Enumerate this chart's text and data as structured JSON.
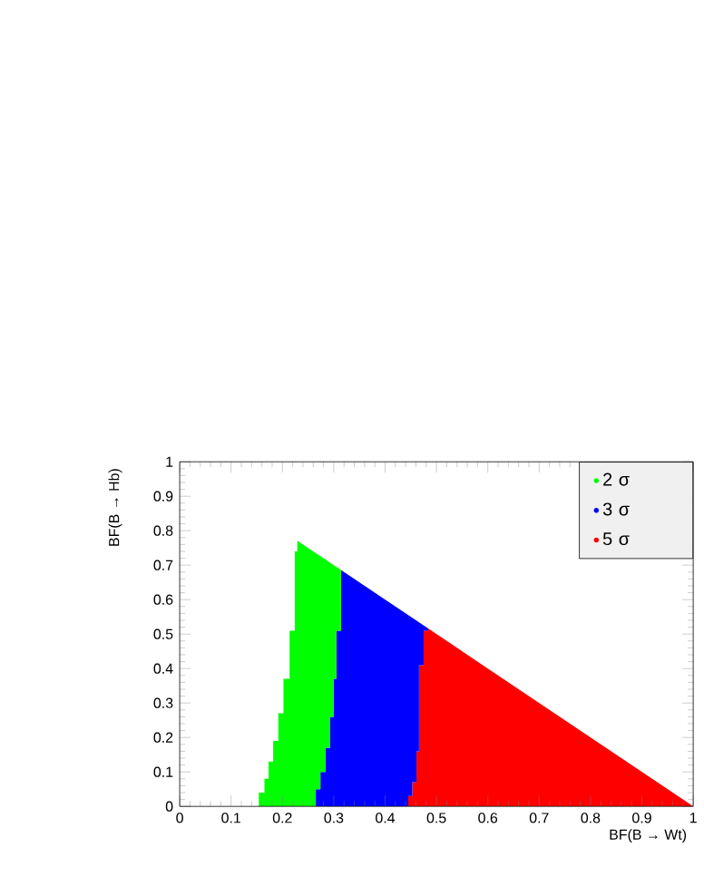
{
  "chart_data": {
    "type": "area",
    "stacked": true,
    "xlabel": "BF(B → Wt)",
    "ylabel": "BF(B → Hb)",
    "xlim": [
      0,
      1
    ],
    "ylim": [
      0,
      1
    ],
    "xticks": [
      0,
      0.1,
      0.2,
      0.3,
      0.4,
      0.5,
      0.6,
      0.7,
      0.8,
      0.9,
      1
    ],
    "yticks": [
      0,
      0.1,
      0.2,
      0.3,
      0.4,
      0.5,
      0.6,
      0.7,
      0.8,
      0.9,
      1
    ],
    "legend": "top right",
    "x": [
      0.154,
      0.154,
      0.165,
      0.165,
      0.173,
      0.173,
      0.182,
      0.182,
      0.192,
      0.192,
      0.202,
      0.202,
      0.214,
      0.214,
      0.224,
      0.224,
      0.229,
      0.229,
      0.265,
      0.265,
      0.274,
      0.274,
      0.284,
      0.284,
      0.293,
      0.293,
      0.3,
      0.3,
      0.305,
      0.305,
      0.314,
      0.314,
      0.445,
      0.445,
      0.453,
      0.453,
      0.461,
      0.461,
      0.466,
      0.466,
      0.475,
      0.475,
      0.484,
      0.484,
      1
    ],
    "series": [
      {
        "name": "5 σ",
        "color": "#ff0000",
        "values": [
          0,
          0,
          0,
          0,
          0,
          0,
          0,
          0,
          0,
          0,
          0,
          0,
          0,
          0,
          0,
          0,
          0,
          0,
          0,
          0,
          0,
          0,
          0,
          0,
          0,
          0,
          0,
          0,
          0,
          0,
          0,
          0,
          0,
          0.03,
          0.03,
          0.07,
          0.07,
          0.16,
          0.16,
          0.41,
          0.41,
          0.51,
          0.51,
          0.516,
          0
        ]
      },
      {
        "name": "3 σ",
        "color": "#0000ff",
        "values": [
          0,
          0,
          0,
          0,
          0,
          0,
          0,
          0,
          0,
          0,
          0,
          0,
          0,
          0,
          0,
          0,
          0,
          0,
          0,
          0.05,
          0.05,
          0.1,
          0.1,
          0.17,
          0.17,
          0.26,
          0.26,
          0.37,
          0.37,
          0.51,
          0.51,
          0.686,
          0.555,
          0.525,
          0.517,
          0.477,
          0.469,
          0.379,
          0.374,
          0.124,
          0.115,
          0.015,
          0.006,
          0,
          0
        ]
      },
      {
        "name": "2 σ",
        "color": "#00ff00",
        "values": [
          0,
          0.04,
          0.04,
          0.08,
          0.08,
          0.13,
          0.13,
          0.19,
          0.19,
          0.27,
          0.27,
          0.37,
          0.37,
          0.51,
          0.51,
          0.74,
          0.74,
          0.771,
          0.735,
          0.685,
          0.676,
          0.626,
          0.616,
          0.546,
          0.537,
          0.447,
          0.44,
          0.33,
          0.325,
          0.185,
          0.176,
          0,
          0,
          0,
          0,
          0,
          0,
          0,
          0,
          0,
          0,
          0,
          0,
          0,
          0
        ]
      }
    ]
  }
}
